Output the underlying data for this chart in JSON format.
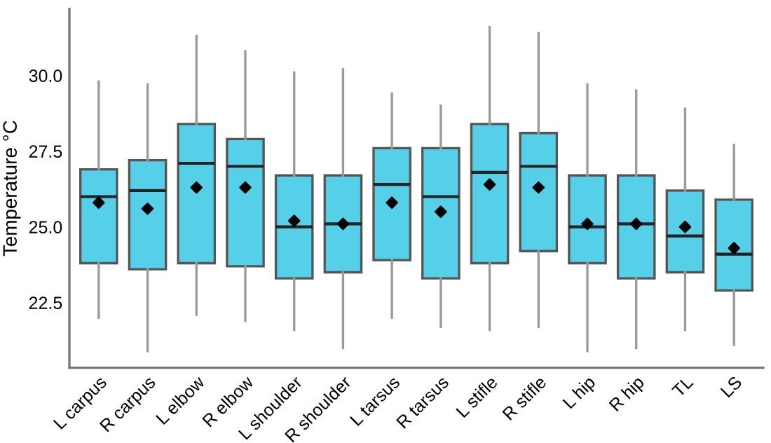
{
  "chart_data": {
    "type": "box",
    "ylabel": "Temperature °C",
    "categories": [
      "L carpus",
      "R carpus",
      "L elbow",
      "R elbow",
      "L shoulder",
      "R shoulder",
      "L tarsus",
      "R tarsus",
      "L stifle",
      "R stifle",
      "L hip",
      "R hip",
      "TL",
      "LS"
    ],
    "color": "#56cfe9",
    "boxes": [
      {
        "low": 22.0,
        "q1": 23.8,
        "median": 26.0,
        "q3": 26.9,
        "high": 29.8,
        "mean": 25.8
      },
      {
        "low": 20.9,
        "q1": 23.6,
        "median": 26.2,
        "q3": 27.2,
        "high": 29.7,
        "mean": 25.6
      },
      {
        "low": 22.1,
        "q1": 23.8,
        "median": 27.1,
        "q3": 28.4,
        "high": 31.3,
        "mean": 26.3
      },
      {
        "low": 21.9,
        "q1": 23.7,
        "median": 27.0,
        "q3": 27.9,
        "high": 30.8,
        "mean": 26.3
      },
      {
        "low": 21.6,
        "q1": 23.3,
        "median": 25.0,
        "q3": 26.7,
        "high": 30.1,
        "mean": 25.2
      },
      {
        "low": 21.0,
        "q1": 23.5,
        "median": 25.1,
        "q3": 26.7,
        "high": 30.2,
        "mean": 25.1
      },
      {
        "low": 22.0,
        "q1": 23.9,
        "median": 26.4,
        "q3": 27.6,
        "high": 29.4,
        "mean": 25.8
      },
      {
        "low": 21.7,
        "q1": 23.3,
        "median": 26.0,
        "q3": 27.6,
        "high": 29.0,
        "mean": 25.5
      },
      {
        "low": 21.6,
        "q1": 23.8,
        "median": 26.8,
        "q3": 28.4,
        "high": 31.6,
        "mean": 26.4
      },
      {
        "low": 21.7,
        "q1": 24.2,
        "median": 27.0,
        "q3": 28.1,
        "high": 31.4,
        "mean": 26.3
      },
      {
        "low": 20.9,
        "q1": 23.8,
        "median": 25.0,
        "q3": 26.7,
        "high": 29.7,
        "mean": 25.1
      },
      {
        "low": 21.0,
        "q1": 23.3,
        "median": 25.1,
        "q3": 26.7,
        "high": 29.5,
        "mean": 25.1
      },
      {
        "low": 21.6,
        "q1": 23.5,
        "median": 24.7,
        "q3": 26.2,
        "high": 28.9,
        "mean": 25.0
      },
      {
        "low": 21.1,
        "q1": 22.9,
        "median": 24.1,
        "q3": 25.9,
        "high": 27.7,
        "mean": 24.3
      }
    ],
    "ylim": [
      20.35,
      32.2
    ],
    "yticks": [
      {
        "value": 22.5,
        "label": "22.5"
      },
      {
        "value": 25,
        "label": "25.0"
      },
      {
        "value": 27.5,
        "label": "27.5"
      },
      {
        "value": 30,
        "label": "30.0"
      }
    ],
    "grid": false,
    "legend": false,
    "marker": "diamond"
  }
}
